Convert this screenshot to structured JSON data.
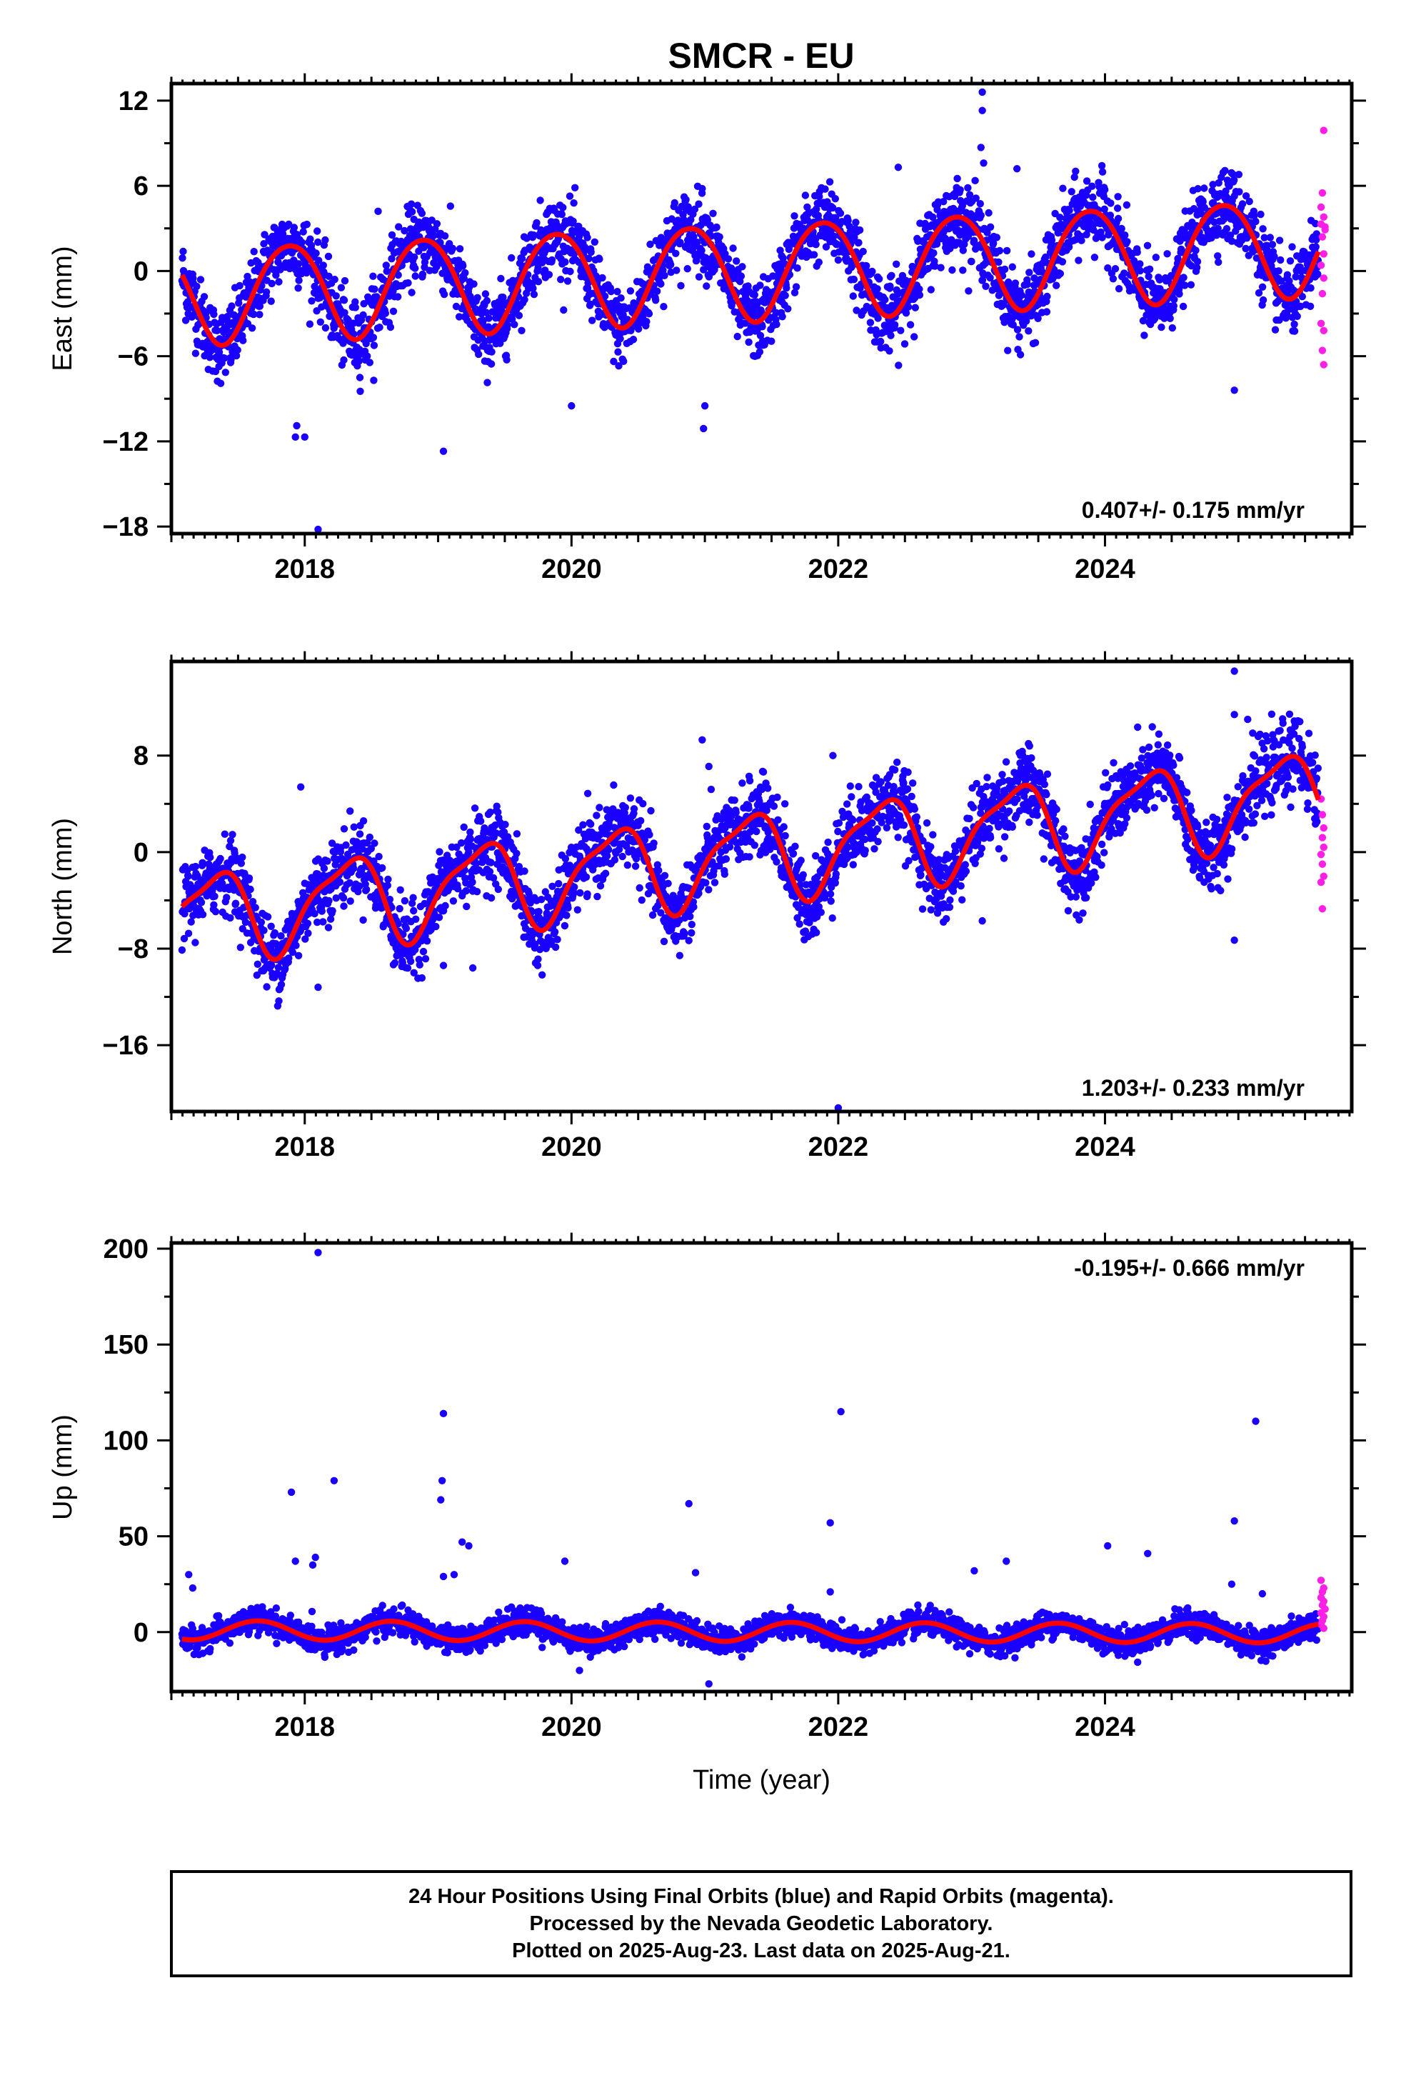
{
  "title": "SMCR - EU",
  "chart_data": [
    {
      "type": "scatter",
      "ylabel": "East (mm)",
      "xlabel": "",
      "xlim": [
        2017.0,
        2025.85
      ],
      "ylim": [
        -18.5,
        13.2
      ],
      "xticks": [
        2018,
        2020,
        2022,
        2024
      ],
      "yticks": [
        12,
        6,
        0,
        -6,
        -12,
        -18
      ],
      "ytick_labels": [
        "12",
        "6",
        "0",
        "−6",
        "−12",
        "−18"
      ],
      "rate_label": "0.407+/- 0.175 mm/yr",
      "rate_position": "bottom-right",
      "model": {
        "start": 2017.08,
        "end": 2025.6,
        "offset": -1.7,
        "rate": 0.407,
        "annual_amplitude": 3.4,
        "annual_phase": 2.3,
        "semiannual_amplitude": 0.3,
        "semiannual_phase": 0.0
      },
      "scatter_noise": 1.3,
      "outliers": [
        [
          2023.08,
          12.6
        ],
        [
          2023.08,
          11.3
        ],
        [
          2023.07,
          8.7
        ],
        [
          2023.09,
          7.6
        ],
        [
          2018.1,
          -18.2
        ],
        [
          2019.04,
          -12.7
        ],
        [
          2017.94,
          -10.9
        ],
        [
          2017.93,
          -11.7
        ],
        [
          2018.0,
          -11.7
        ],
        [
          2020.99,
          -11.1
        ],
        [
          2021.0,
          -9.5
        ],
        [
          2024.97,
          -8.4
        ],
        [
          2020.0,
          -9.5
        ],
        [
          2020.98,
          5.8
        ],
        [
          2022.45,
          7.3
        ],
        [
          2023.34,
          7.2
        ],
        [
          2018.55,
          4.2
        ],
        [
          2017.97,
          2.0
        ]
      ],
      "rapid": [
        [
          2025.64,
          9.9
        ],
        [
          2025.63,
          5.5
        ],
        [
          2025.62,
          4.5
        ],
        [
          2025.64,
          3.8
        ],
        [
          2025.65,
          3.1
        ],
        [
          2025.63,
          2.4
        ],
        [
          2025.64,
          1.2
        ],
        [
          2025.62,
          0.4
        ],
        [
          2025.64,
          -0.5
        ],
        [
          2025.63,
          -1.6
        ],
        [
          2025.62,
          -3.7
        ],
        [
          2025.64,
          -4.2
        ],
        [
          2025.63,
          -5.6
        ],
        [
          2025.64,
          -6.6
        ],
        [
          2025.62,
          3.3
        ],
        [
          2025.65,
          2.9
        ]
      ]
    },
    {
      "type": "scatter",
      "ylabel": "North (mm)",
      "xlabel": "",
      "xlim": [
        2017.0,
        2025.85
      ],
      "ylim": [
        -21.5,
        15.8
      ],
      "xticks": [
        2018,
        2020,
        2022,
        2024
      ],
      "yticks": [
        8,
        0,
        -8,
        -16
      ],
      "ytick_labels": [
        "8",
        "0",
        "−8",
        "−16"
      ],
      "rate_label": "1.203+/- 0.233 mm/yr",
      "rate_position": "bottom-right",
      "model": {
        "start": 2017.08,
        "end": 2025.6,
        "offset": -5.5,
        "rate": 1.203,
        "annual_amplitude": 3.5,
        "annual_phase": -0.4,
        "semiannual_amplitude": 1.0,
        "semiannual_phase": 1.6
      },
      "scatter_noise": 1.5,
      "outliers": [
        [
          2022.0,
          -21.2
        ],
        [
          2018.1,
          -11.2
        ],
        [
          2019.26,
          -9.6
        ],
        [
          2019.04,
          -9.4
        ],
        [
          2024.97,
          -7.3
        ],
        [
          2023.08,
          -5.7
        ],
        [
          2024.97,
          15.0
        ],
        [
          2024.97,
          11.4
        ],
        [
          2025.07,
          11.0
        ],
        [
          2020.98,
          9.3
        ],
        [
          2021.03,
          7.1
        ],
        [
          2021.96,
          8.0
        ],
        [
          2017.97,
          5.4
        ],
        [
          2023.42,
          7.1
        ],
        [
          2021.6,
          4.0
        ]
      ],
      "rapid": [
        [
          2025.62,
          4.4
        ],
        [
          2025.63,
          3.1
        ],
        [
          2025.64,
          2.0
        ],
        [
          2025.63,
          1.2
        ],
        [
          2025.64,
          0.4
        ],
        [
          2025.62,
          -0.2
        ],
        [
          2025.63,
          -1.0
        ],
        [
          2025.64,
          -2.0
        ],
        [
          2025.62,
          -2.5
        ],
        [
          2025.63,
          -4.7
        ]
      ]
    },
    {
      "type": "scatter",
      "ylabel": "Up (mm)",
      "xlabel": "Time (year)",
      "xlim": [
        2017.0,
        2025.85
      ],
      "ylim": [
        -31,
        203
      ],
      "xticks": [
        2018,
        2020,
        2022,
        2024
      ],
      "yticks": [
        200,
        150,
        100,
        50,
        0
      ],
      "ytick_labels": [
        "200",
        "150",
        "100",
        "50",
        "0"
      ],
      "rate_label": "-0.195+/- 0.666 mm/yr",
      "rate_position": "top-right",
      "model": {
        "start": 2017.08,
        "end": 2025.6,
        "offset": 1.0,
        "rate": -0.195,
        "annual_amplitude": 5.0,
        "annual_phase": -2.5,
        "semiannual_amplitude": 0.0,
        "semiannual_phase": 0.0
      },
      "scatter_noise": 3.3,
      "outliers": [
        [
          2018.1,
          198
        ],
        [
          2019.04,
          114
        ],
        [
          2022.02,
          115
        ],
        [
          2025.13,
          110
        ],
        [
          2019.03,
          79
        ],
        [
          2018.22,
          79
        ],
        [
          2017.9,
          73
        ],
        [
          2019.02,
          69
        ],
        [
          2020.88,
          67
        ],
        [
          2024.97,
          58
        ],
        [
          2021.94,
          57
        ],
        [
          2019.18,
          47
        ],
        [
          2019.23,
          45
        ],
        [
          2024.02,
          45
        ],
        [
          2024.32,
          41
        ],
        [
          2018.08,
          39
        ],
        [
          2017.93,
          37
        ],
        [
          2019.95,
          37
        ],
        [
          2018.06,
          35
        ],
        [
          2023.26,
          37
        ],
        [
          2023.02,
          32
        ],
        [
          2017.13,
          30
        ],
        [
          2019.04,
          29
        ],
        [
          2019.12,
          30
        ],
        [
          2020.93,
          31
        ],
        [
          2017.16,
          23
        ],
        [
          2021.94,
          21
        ],
        [
          2024.95,
          25
        ],
        [
          2025.18,
          20
        ],
        [
          2019.78,
          -8
        ],
        [
          2020.06,
          -20
        ],
        [
          2021.03,
          -27
        ]
      ],
      "rapid": [
        [
          2025.62,
          27
        ],
        [
          2025.64,
          23
        ],
        [
          2025.63,
          21
        ],
        [
          2025.62,
          18
        ],
        [
          2025.64,
          16
        ],
        [
          2025.63,
          14
        ],
        [
          2025.65,
          12
        ],
        [
          2025.62,
          10
        ],
        [
          2025.64,
          8
        ],
        [
          2025.63,
          6
        ],
        [
          2025.62,
          4
        ],
        [
          2025.64,
          2
        ]
      ]
    }
  ],
  "footer": {
    "line1": "24 Hour Positions Using Final Orbits (blue) and Rapid Orbits (magenta).",
    "line2": "Processed by the Nevada Geodetic Laboratory.",
    "line3": "Plotted on 2025-Aug-23. Last data on 2025-Aug-21."
  },
  "colors": {
    "final": "#1a00ff",
    "rapid": "#ff1ee6",
    "model": "#ff0000",
    "axis": "#000000"
  }
}
